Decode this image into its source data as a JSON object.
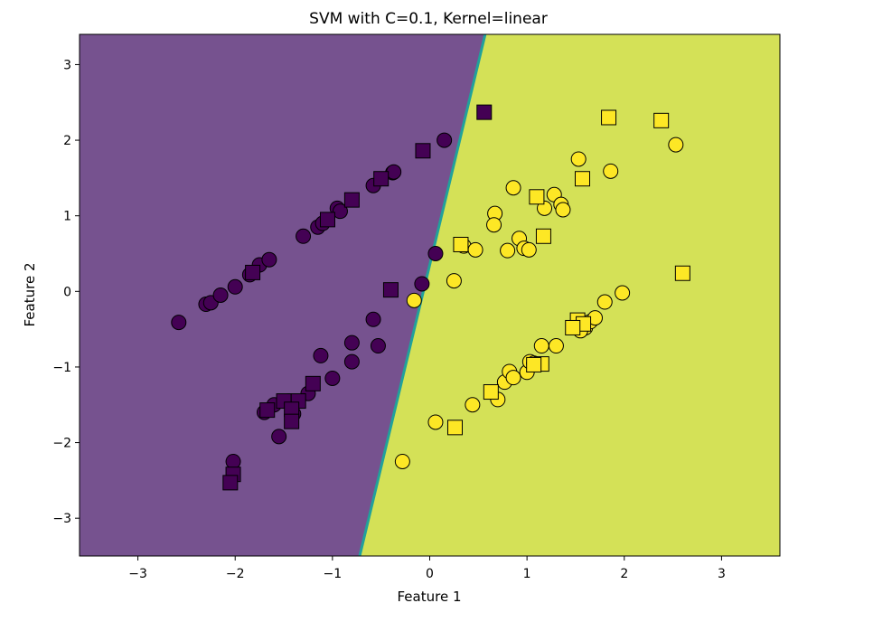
{
  "chart_data": {
    "type": "scatter",
    "title": "SVM with C=0.1, Kernel=linear",
    "xlabel": "Feature 1",
    "ylabel": "Feature 2",
    "xlim": [
      -3.6,
      3.6
    ],
    "ylim": [
      -3.5,
      3.4
    ],
    "xticks": [
      -3,
      -2,
      -1,
      0,
      1,
      2,
      3
    ],
    "yticks": [
      -3,
      -2,
      -1,
      0,
      1,
      2,
      3
    ],
    "xtick_labels": [
      "−3",
      "−2",
      "−1",
      "0",
      "1",
      "2",
      "3"
    ],
    "ytick_labels": [
      "−3",
      "−2",
      "−1",
      "0",
      "1",
      "2",
      "3"
    ],
    "grid": false,
    "colors": {
      "class0_region": "#76528f",
      "class1_region": "#d4e157",
      "class0_marker": "#440154",
      "class1_marker": "#fde725",
      "boundary": "#21a19b"
    },
    "decision_boundary": {
      "top": [
        0.57,
        3.4
      ],
      "bottom": [
        -0.72,
        -3.5
      ]
    },
    "series": [
      {
        "class": 0,
        "marker": "circle",
        "points": [
          [
            -2.58,
            -0.41
          ],
          [
            -2.3,
            -0.17
          ],
          [
            -2.25,
            -0.15
          ],
          [
            -2.15,
            -0.05
          ],
          [
            -2.0,
            0.06
          ],
          [
            -1.85,
            0.22
          ],
          [
            -1.75,
            0.35
          ],
          [
            -1.65,
            0.42
          ],
          [
            -1.3,
            0.73
          ],
          [
            -1.15,
            0.85
          ],
          [
            -1.1,
            0.9
          ],
          [
            -0.95,
            1.1
          ],
          [
            -0.92,
            1.06
          ],
          [
            -0.58,
            1.4
          ],
          [
            -0.38,
            1.57
          ],
          [
            -0.37,
            1.58
          ],
          [
            0.15,
            2.0
          ],
          [
            -0.08,
            0.1
          ],
          [
            0.06,
            0.5
          ],
          [
            -0.58,
            -0.37
          ],
          [
            -0.53,
            -0.72
          ],
          [
            -0.8,
            -0.68
          ],
          [
            -0.8,
            -0.93
          ],
          [
            -1.0,
            -1.15
          ],
          [
            -1.12,
            -0.85
          ],
          [
            -1.25,
            -1.35
          ],
          [
            -1.45,
            -1.45
          ],
          [
            -1.6,
            -1.5
          ],
          [
            -1.7,
            -1.6
          ],
          [
            -1.4,
            -1.62
          ],
          [
            -1.55,
            -1.92
          ],
          [
            -2.02,
            -2.25
          ]
        ]
      },
      {
        "class": 0,
        "marker": "square",
        "points": [
          [
            0.56,
            2.37
          ],
          [
            -0.07,
            1.86
          ],
          [
            -0.5,
            1.49
          ],
          [
            -0.8,
            1.21
          ],
          [
            -1.05,
            0.95
          ],
          [
            -1.82,
            0.25
          ],
          [
            -0.4,
            0.02
          ],
          [
            -1.2,
            -1.22
          ],
          [
            -1.35,
            -1.45
          ],
          [
            -1.5,
            -1.45
          ],
          [
            -1.42,
            -1.56
          ],
          [
            -1.67,
            -1.57
          ],
          [
            -1.42,
            -1.72
          ],
          [
            -2.02,
            -2.42
          ],
          [
            -2.05,
            -2.53
          ]
        ]
      },
      {
        "class": 1,
        "marker": "circle",
        "points": [
          [
            -0.16,
            -0.12
          ],
          [
            0.25,
            0.14
          ],
          [
            0.35,
            0.6
          ],
          [
            0.47,
            0.55
          ],
          [
            0.67,
            1.03
          ],
          [
            0.66,
            0.88
          ],
          [
            0.8,
            0.54
          ],
          [
            0.86,
            1.37
          ],
          [
            0.92,
            0.7
          ],
          [
            0.97,
            0.57
          ],
          [
            1.02,
            0.55
          ],
          [
            1.18,
            1.1
          ],
          [
            1.28,
            1.28
          ],
          [
            1.35,
            1.15
          ],
          [
            1.37,
            1.08
          ],
          [
            1.53,
            1.75
          ],
          [
            1.86,
            1.59
          ],
          [
            2.53,
            1.94
          ],
          [
            0.06,
            -1.73
          ],
          [
            0.44,
            -1.5
          ],
          [
            0.7,
            -1.43
          ],
          [
            0.77,
            -1.2
          ],
          [
            0.82,
            -1.06
          ],
          [
            0.86,
            -1.14
          ],
          [
            1.0,
            -1.07
          ],
          [
            1.03,
            -0.93
          ],
          [
            1.07,
            -0.95
          ],
          [
            1.15,
            -0.72
          ],
          [
            1.3,
            -0.72
          ],
          [
            1.6,
            -0.48
          ],
          [
            1.65,
            -0.4
          ],
          [
            1.7,
            -0.35
          ],
          [
            1.8,
            -0.14
          ],
          [
            1.98,
            -0.02
          ],
          [
            -0.28,
            -2.25
          ],
          [
            1.55,
            -0.52
          ]
        ]
      },
      {
        "class": 1,
        "marker": "square",
        "points": [
          [
            1.84,
            2.3
          ],
          [
            2.38,
            2.26
          ],
          [
            1.57,
            1.49
          ],
          [
            1.1,
            1.25
          ],
          [
            1.17,
            0.73
          ],
          [
            0.32,
            0.62
          ],
          [
            2.6,
            0.24
          ],
          [
            1.52,
            -0.38
          ],
          [
            1.58,
            -0.43
          ],
          [
            1.47,
            -0.48
          ],
          [
            1.15,
            -0.96
          ],
          [
            1.07,
            -0.97
          ],
          [
            0.63,
            -1.33
          ],
          [
            0.26,
            -1.8
          ]
        ]
      }
    ]
  }
}
